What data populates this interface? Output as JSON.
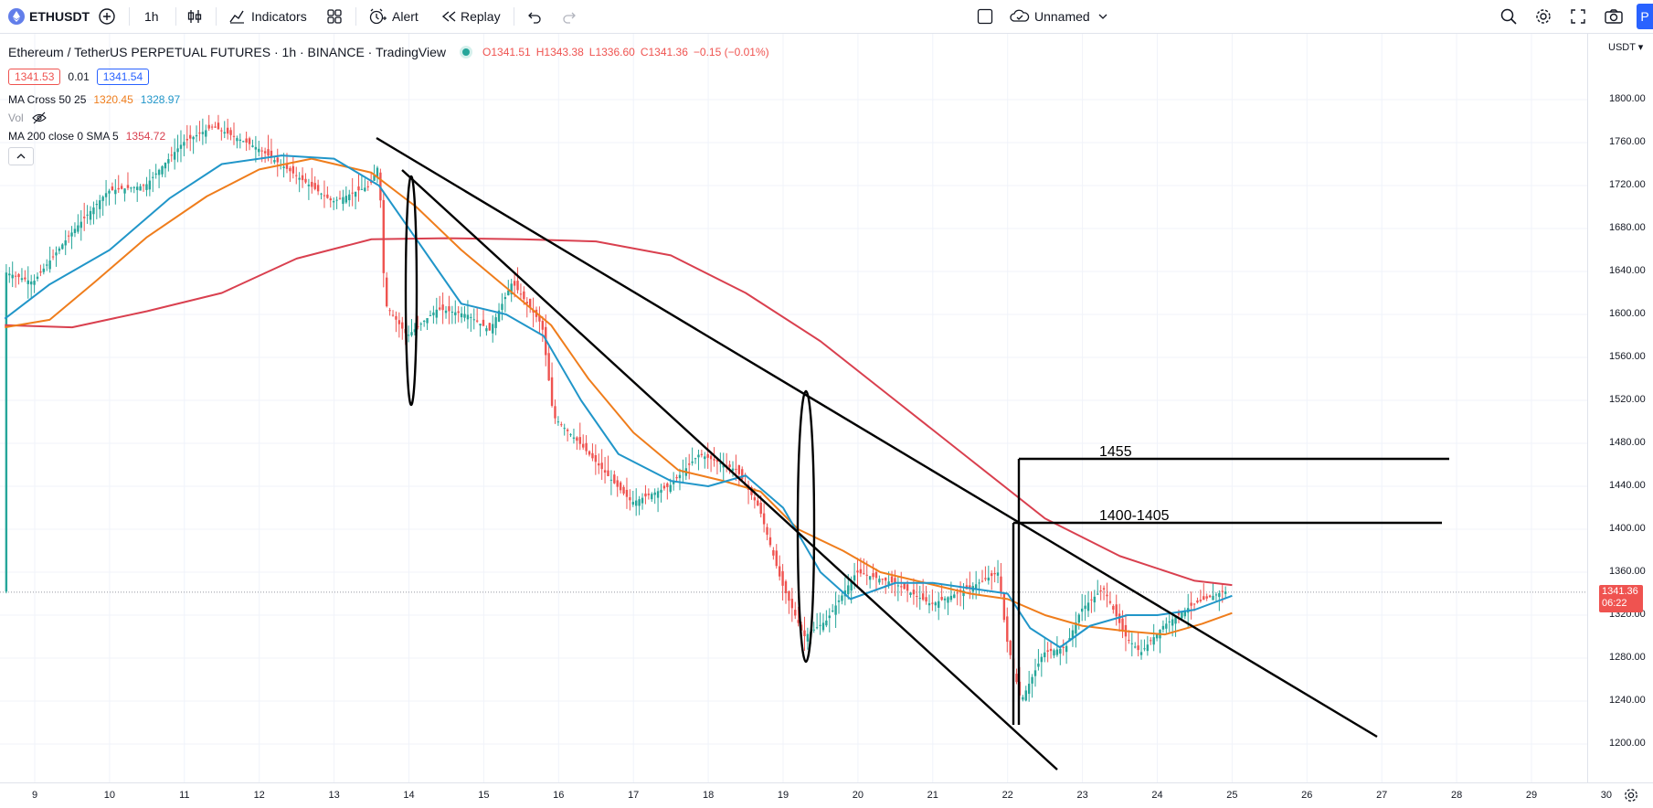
{
  "toolbar": {
    "symbol": "ETHUSDT",
    "interval": "1h",
    "indicators_label": "Indicators",
    "alert_label": "Alert",
    "replay_label": "Replay",
    "layout_name": "Unnamed",
    "publish_label": "P"
  },
  "legend": {
    "title": "Ethereum / TetherUS PERPETUAL FUTURES · 1h · BINANCE · TradingView",
    "open": "O1341.51",
    "high": "H1343.38",
    "low": "L1336.60",
    "close": "C1341.36",
    "change": "−0.15 (−0.01%)",
    "sell_price": "1341.53",
    "spread": "0.01",
    "buy_price": "1341.54",
    "ma_cross_label": "MA Cross 50 25",
    "ma_cross_v1": "1320.45",
    "ma_cross_v2": "1328.97",
    "vol_label": "Vol",
    "ma200_label": "MA 200 close 0 SMA 5",
    "ma200_value": "1354.72"
  },
  "price_scale": {
    "currency": "USDT",
    "ticks": [
      "1800.00",
      "1760.00",
      "1720.00",
      "1680.00",
      "1640.00",
      "1600.00",
      "1560.00",
      "1520.00",
      "1480.00",
      "1440.00",
      "1400.00",
      "1360.00",
      "1320.00",
      "1280.00",
      "1240.00",
      "1200.00"
    ],
    "current_price": "1341.36",
    "countdown": "06:22"
  },
  "time_scale": {
    "ticks": [
      "9",
      "10",
      "11",
      "12",
      "13",
      "14",
      "15",
      "16",
      "17",
      "18",
      "19",
      "20",
      "21",
      "22",
      "23",
      "24",
      "25",
      "26",
      "27",
      "28",
      "29",
      "30"
    ]
  },
  "annotations": {
    "level_high": "1455",
    "level_zone": "1400-1405"
  },
  "colors": {
    "ma_fast": "#2196c9",
    "ma_slow": "#ef7d1c",
    "ma200": "#d9404f",
    "up": "#26a69a",
    "down": "#ef5350",
    "current_price_bg": "#ef5350"
  },
  "chart_data": {
    "type": "candlestick",
    "y_range": [
      1180,
      1820
    ],
    "x_range_days": [
      "9",
      "30"
    ],
    "ma200_path": [
      [
        8.6,
        1590
      ],
      [
        9.5,
        1588
      ],
      [
        10.5,
        1603
      ],
      [
        11.5,
        1620
      ],
      [
        12.5,
        1652
      ],
      [
        13.5,
        1670
      ],
      [
        14.5,
        1671
      ],
      [
        15.5,
        1670
      ],
      [
        16.5,
        1668
      ],
      [
        17.5,
        1655
      ],
      [
        18.5,
        1620
      ],
      [
        19.5,
        1575
      ],
      [
        20.5,
        1520
      ],
      [
        21.5,
        1465
      ],
      [
        22.5,
        1410
      ],
      [
        23.5,
        1375
      ],
      [
        24.5,
        1352
      ],
      [
        25.0,
        1348
      ]
    ],
    "ma_fast_path": [
      [
        8.6,
        1596
      ],
      [
        9.2,
        1628
      ],
      [
        10.0,
        1660
      ],
      [
        10.8,
        1708
      ],
      [
        11.5,
        1740
      ],
      [
        12.3,
        1748
      ],
      [
        13.0,
        1745
      ],
      [
        13.6,
        1720
      ],
      [
        14.2,
        1660
      ],
      [
        14.7,
        1610
      ],
      [
        15.3,
        1600
      ],
      [
        15.8,
        1580
      ],
      [
        16.3,
        1520
      ],
      [
        16.8,
        1470
      ],
      [
        17.5,
        1445
      ],
      [
        18.0,
        1440
      ],
      [
        18.5,
        1450
      ],
      [
        19.0,
        1420
      ],
      [
        19.5,
        1360
      ],
      [
        19.9,
        1335
      ],
      [
        20.5,
        1350
      ],
      [
        21.0,
        1350
      ],
      [
        21.5,
        1345
      ],
      [
        22.0,
        1340
      ],
      [
        22.3,
        1308
      ],
      [
        22.7,
        1290
      ],
      [
        23.1,
        1310
      ],
      [
        23.6,
        1320
      ],
      [
        24.0,
        1320
      ],
      [
        24.5,
        1325
      ],
      [
        25.0,
        1338
      ]
    ],
    "ma_slow_path": [
      [
        8.6,
        1588
      ],
      [
        9.2,
        1595
      ],
      [
        9.8,
        1630
      ],
      [
        10.5,
        1672
      ],
      [
        11.3,
        1710
      ],
      [
        12.0,
        1735
      ],
      [
        12.7,
        1745
      ],
      [
        13.5,
        1732
      ],
      [
        14.1,
        1700
      ],
      [
        14.7,
        1660
      ],
      [
        15.3,
        1625
      ],
      [
        15.9,
        1590
      ],
      [
        16.4,
        1540
      ],
      [
        17.0,
        1490
      ],
      [
        17.6,
        1455
      ],
      [
        18.2,
        1445
      ],
      [
        18.7,
        1435
      ],
      [
        19.2,
        1400
      ],
      [
        19.8,
        1380
      ],
      [
        20.3,
        1360
      ],
      [
        20.9,
        1350
      ],
      [
        21.5,
        1340
      ],
      [
        22.0,
        1335
      ],
      [
        22.5,
        1320
      ],
      [
        23.0,
        1310
      ],
      [
        23.6,
        1305
      ],
      [
        24.1,
        1302
      ],
      [
        24.6,
        1312
      ],
      [
        25.0,
        1322
      ]
    ],
    "current_price": 1341.36
  }
}
